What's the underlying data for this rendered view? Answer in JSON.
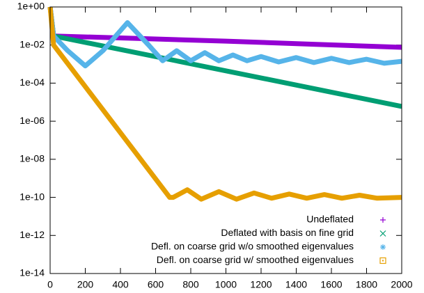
{
  "chart_data": {
    "type": "line",
    "log_y": true,
    "legend": "lower right",
    "xlim": [
      0,
      2000
    ],
    "xticks": [
      0,
      200,
      400,
      600,
      800,
      1000,
      1200,
      1400,
      1600,
      1800,
      2000
    ],
    "ylim": [
      1e-14,
      1
    ],
    "yticks": [
      {
        "value": 1,
        "label": "1e+00"
      },
      {
        "value": 0.01,
        "label": "1e-02"
      },
      {
        "value": 0.0001,
        "label": "1e-04"
      },
      {
        "value": 1e-06,
        "label": "1e-06"
      },
      {
        "value": 1e-08,
        "label": "1e-08"
      },
      {
        "value": 1e-10,
        "label": "1e-10"
      },
      {
        "value": 1e-12,
        "label": "1e-12"
      },
      {
        "value": 1e-14,
        "label": "1e-14"
      }
    ],
    "series": [
      {
        "name": "Undeflated",
        "color": "#9400d3",
        "x": [
          0,
          20,
          500,
          1000,
          1500,
          2000
        ],
        "values": [
          1,
          0.03,
          0.022,
          0.016,
          0.011,
          0.0076
        ]
      },
      {
        "name": "Deflated with basis on fine grid",
        "color": "#009e73",
        "x": [
          0,
          20,
          2000
        ],
        "values": [
          1,
          0.03,
          6e-06
        ]
      },
      {
        "name": "Defl. on coarse grid w/o smoothed eigenvalues",
        "color": "#56b4e9",
        "x": [
          0,
          20,
          100,
          200,
          300,
          440,
          560,
          640,
          720,
          800,
          880,
          960,
          1040,
          1120,
          1200,
          1300,
          1400,
          1500,
          1600,
          1700,
          1800,
          1900,
          2000
        ],
        "values": [
          1,
          0.03,
          0.005,
          0.0008,
          0.005,
          0.15,
          0.01,
          0.0015,
          0.005,
          0.0015,
          0.004,
          0.0015,
          0.003,
          0.0015,
          0.0025,
          0.0013,
          0.0022,
          0.0012,
          0.002,
          0.0012,
          0.0018,
          0.0011,
          0.0014
        ]
      },
      {
        "name": "Defl. on coarse grid w/ smoothed eigenvalues",
        "color": "#e69f00",
        "x": [
          0,
          20,
          680,
          700,
          780,
          860,
          960,
          1060,
          1160,
          1260,
          1360,
          1460,
          1560,
          1660,
          1760,
          1860,
          2000
        ],
        "values": [
          1,
          0.01,
          1e-10,
          1e-10,
          2.5e-10,
          8e-11,
          2e-10,
          8e-11,
          1.7e-10,
          9e-11,
          1.5e-10,
          9e-11,
          1.4e-10,
          9e-11,
          1.3e-10,
          9e-11,
          1e-10
        ]
      }
    ]
  }
}
